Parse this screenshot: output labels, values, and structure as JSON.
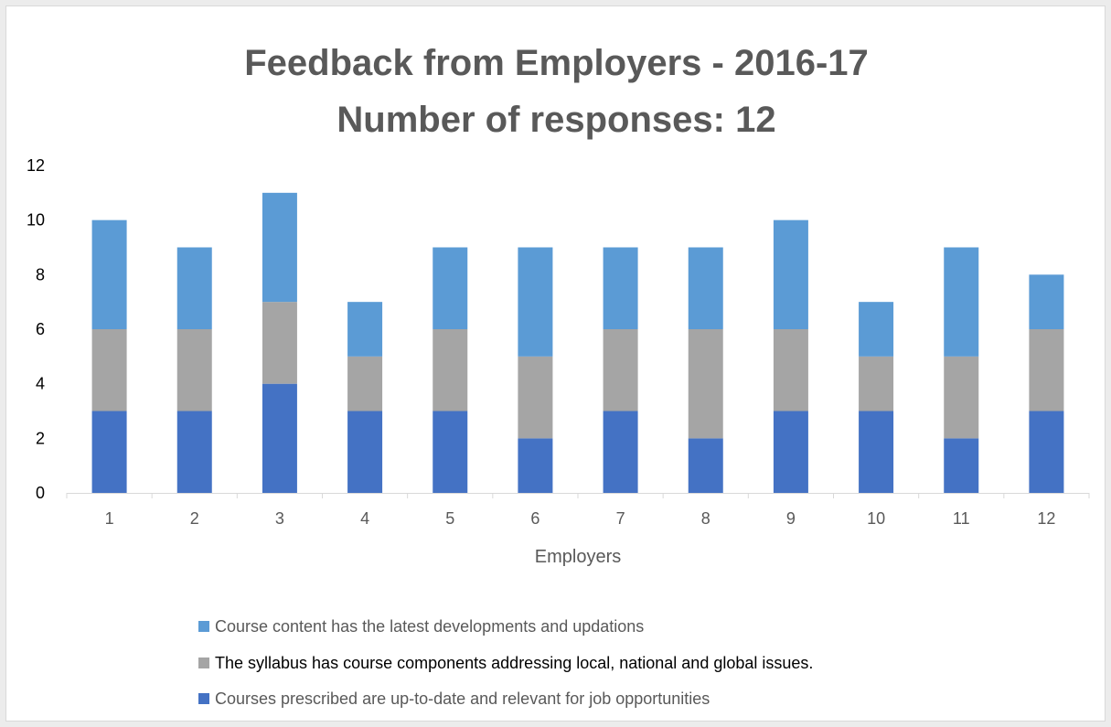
{
  "title_line1": "Feedback from Employers - 2016-17",
  "title_line2": "Number of responses: 12",
  "chart_data": {
    "type": "bar",
    "stacked": true,
    "title": "Feedback from Employers - 2016-17 Number of responses: 12",
    "xlabel": "Employers",
    "ylabel": "",
    "ylim": [
      0,
      12
    ],
    "yticks": [
      "0",
      "2",
      "4",
      "6",
      "8",
      "10",
      "12"
    ],
    "categories": [
      "1",
      "2",
      "3",
      "4",
      "5",
      "6",
      "7",
      "8",
      "9",
      "10",
      "11",
      "12"
    ],
    "grid": false,
    "legend_position": "bottom",
    "series": [
      {
        "name": "Courses prescribed are up-to-date and relevant for job opportunities",
        "color": "#4472c4",
        "values": [
          3,
          3,
          4,
          3,
          3,
          2,
          3,
          2,
          3,
          3,
          2,
          3
        ]
      },
      {
        "name": "The syllabus has course components addressing local, national and global issues.",
        "color": "#a5a5a5",
        "values": [
          3,
          3,
          3,
          2,
          3,
          3,
          3,
          4,
          3,
          2,
          3,
          3
        ]
      },
      {
        "name": "Course content has the latest developments and updations",
        "color": "#5b9bd5",
        "values": [
          4,
          3,
          4,
          2,
          3,
          4,
          3,
          3,
          4,
          2,
          4,
          2
        ]
      }
    ]
  }
}
